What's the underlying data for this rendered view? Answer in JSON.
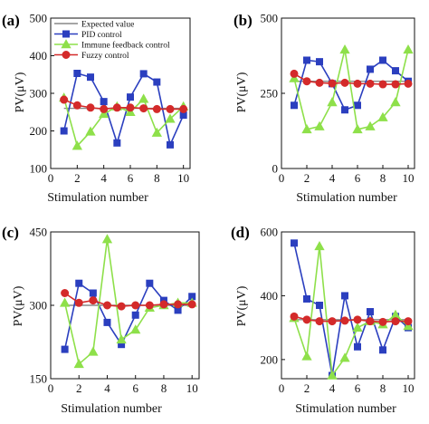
{
  "legend": [
    {
      "name": "Expected value",
      "color": "#888888",
      "marker": "none"
    },
    {
      "name": "PID control",
      "color": "#2b3fbf",
      "marker": "square"
    },
    {
      "name": "Immune feedback control",
      "color": "#8ee04a",
      "marker": "triangle"
    },
    {
      "name": "Fuzzy control",
      "color": "#d42a2a",
      "marker": "circle"
    }
  ],
  "chart_data": [
    {
      "panel": "(a)",
      "type": "line",
      "xlabel": "Stimulation number",
      "ylabel": "PV(μV)",
      "xlim": [
        0,
        10.5
      ],
      "ylim": [
        100,
        500
      ],
      "xticks": [
        0,
        2,
        4,
        6,
        8,
        10
      ],
      "yticks": [
        100,
        200,
        300,
        400,
        500
      ],
      "x": [
        1,
        2,
        3,
        4,
        5,
        6,
        7,
        8,
        9,
        10
      ],
      "series": [
        {
          "name": "Expected value",
          "values": [
            260,
            260,
            260,
            260,
            260,
            260,
            260,
            260,
            260,
            260
          ]
        },
        {
          "name": "PID control",
          "values": [
            200,
            353,
            343,
            278,
            168,
            290,
            352,
            330,
            163,
            242
          ]
        },
        {
          "name": "Immune feedback control",
          "values": [
            288,
            160,
            198,
            245,
            265,
            250,
            285,
            195,
            232,
            265
          ]
        },
        {
          "name": "Fuzzy control",
          "values": [
            283,
            268,
            262,
            258,
            262,
            262,
            260,
            258,
            258,
            258
          ]
        }
      ]
    },
    {
      "panel": "(b)",
      "type": "line",
      "xlabel": "Stimulation number",
      "ylabel": "PV(μV)",
      "xlim": [
        0,
        10.5
      ],
      "ylim": [
        0,
        500
      ],
      "xticks": [
        0,
        2,
        4,
        6,
        8,
        10
      ],
      "yticks": [
        0,
        250,
        500
      ],
      "x": [
        1,
        2,
        3,
        4,
        5,
        6,
        7,
        8,
        9,
        10
      ],
      "series": [
        {
          "name": "Expected value",
          "values": [
            290,
            290,
            290,
            290,
            290,
            290,
            290,
            290,
            290,
            290
          ]
        },
        {
          "name": "PID control",
          "values": [
            210,
            360,
            355,
            282,
            195,
            210,
            330,
            360,
            325,
            290
          ]
        },
        {
          "name": "Immune feedback control",
          "values": [
            300,
            130,
            140,
            220,
            395,
            130,
            140,
            170,
            220,
            395
          ]
        },
        {
          "name": "Fuzzy control",
          "values": [
            315,
            290,
            285,
            283,
            285,
            282,
            282,
            280,
            280,
            282
          ]
        }
      ]
    },
    {
      "panel": "(c)",
      "type": "line",
      "xlabel": "Stimulation number",
      "ylabel": "PV(μV)",
      "xlim": [
        0,
        10.5
      ],
      "ylim": [
        150,
        450
      ],
      "xticks": [
        0,
        2,
        4,
        6,
        8,
        10
      ],
      "yticks": [
        150,
        300,
        450
      ],
      "x": [
        1,
        2,
        3,
        4,
        5,
        6,
        7,
        8,
        9,
        10
      ],
      "series": [
        {
          "name": "Expected value",
          "values": [
            300,
            300,
            300,
            300,
            300,
            300,
            300,
            300,
            300,
            300
          ]
        },
        {
          "name": "PID control",
          "values": [
            210,
            345,
            325,
            265,
            220,
            280,
            345,
            310,
            290,
            318
          ]
        },
        {
          "name": "Immune feedback control",
          "values": [
            305,
            180,
            205,
            435,
            230,
            250,
            295,
            300,
            305,
            305
          ]
        },
        {
          "name": "Fuzzy control",
          "values": [
            325,
            305,
            310,
            300,
            298,
            300,
            300,
            302,
            302,
            302
          ]
        }
      ]
    },
    {
      "panel": "(d)",
      "type": "line",
      "xlabel": "Stimulation number",
      "ylabel": "PV(μV)",
      "xlim": [
        0,
        10.5
      ],
      "ylim": [
        140,
        600
      ],
      "xticks": [
        0,
        2,
        4,
        6,
        8,
        10
      ],
      "yticks": [
        200,
        400,
        600
      ],
      "x": [
        1,
        2,
        3,
        4,
        5,
        6,
        7,
        8,
        9,
        10
      ],
      "series": [
        {
          "name": "Expected value",
          "values": [
            325,
            325,
            325,
            325,
            325,
            325,
            325,
            325,
            325,
            325
          ]
        },
        {
          "name": "PID control",
          "values": [
            565,
            390,
            370,
            150,
            400,
            240,
            350,
            230,
            335,
            300
          ]
        },
        {
          "name": "Immune feedback control",
          "values": [
            330,
            210,
            555,
            150,
            205,
            300,
            320,
            310,
            340,
            305
          ]
        },
        {
          "name": "Fuzzy control",
          "values": [
            335,
            325,
            320,
            320,
            322,
            325,
            320,
            318,
            320,
            320
          ]
        }
      ]
    }
  ]
}
